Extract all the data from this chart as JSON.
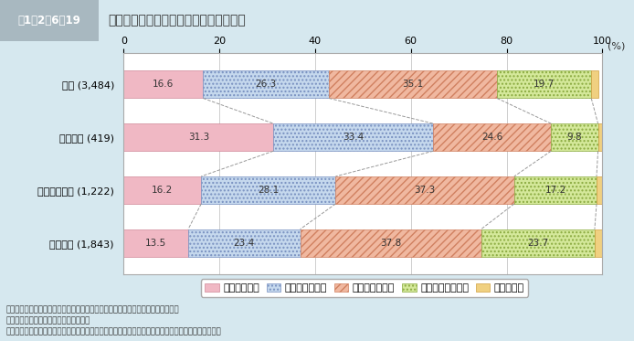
{
  "title_box": "図1－2－6－19",
  "title_text": "孤独死＊を身近な問題と感じる者の割合",
  "categories": [
    "総数 (3,484)",
    "単身世帯 (419)",
    "夫婦二人世帯 (1,222)",
    "それ以外 (1,843)"
  ],
  "segments": [
    {
      "label": "非常に感じる",
      "values": [
        16.6,
        31.3,
        16.2,
        13.5
      ],
      "color": "#f0b8c4",
      "hatch": ""
    },
    {
      "label": "まあまあ感じる",
      "values": [
        26.3,
        33.4,
        28.1,
        23.4
      ],
      "color": "#c5d8ed",
      "hatch": "...."
    },
    {
      "label": "あまり感じない",
      "values": [
        35.1,
        24.6,
        37.3,
        37.8
      ],
      "color": "#f0b8a0",
      "hatch": "////"
    },
    {
      "label": "まったく感じない",
      "values": [
        19.7,
        9.8,
        17.2,
        23.7
      ],
      "color": "#d4e89a",
      "hatch": "...."
    },
    {
      "label": "わからない",
      "values": [
        1.4,
        1.0,
        1.2,
        1.6
      ],
      "color": "#f0d080",
      "hatch": ""
    }
  ],
  "xlim": [
    0,
    100
  ],
  "xticks": [
    0,
    20,
    40,
    60,
    80,
    100
  ],
  "xlabel_pct": "(%)",
  "bg_color": "#d6e8ef",
  "chart_bg": "#ffffff",
  "notes": [
    "資料：内閣府「高齢者の地域におけるライフスタイルに関する調査（平成２１年）",
    "　（注）対象は、全国６０歳以上の男女",
    "＊本調査における「孤独死」の定義は「誰にも看取られることなく亡くなったあとに発見される死」。"
  ],
  "legend_fontsize": 8,
  "bar_height": 0.52,
  "font_size_label": 8,
  "font_size_value": 7.5,
  "seg_edgecolors": [
    "#d08898",
    "#7890c0",
    "#d08060",
    "#8aaa40",
    "#d0a040"
  ],
  "seg_hatch_colors": [
    "#d08898",
    "#7890c0",
    "#d08060",
    "#8aaa40",
    "#d0a040"
  ]
}
